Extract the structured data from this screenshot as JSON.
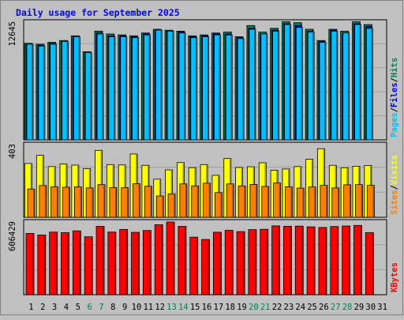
{
  "chart_data": {
    "type": "bar",
    "title": "Daily usage for September 2025",
    "categories": [
      "1",
      "2",
      "3",
      "4",
      "5",
      "6",
      "7",
      "8",
      "9",
      "10",
      "11",
      "12",
      "13",
      "14",
      "15",
      "16",
      "17",
      "18",
      "19",
      "20",
      "21",
      "22",
      "23",
      "24",
      "25",
      "26",
      "27",
      "28",
      "29",
      "30",
      "31"
    ],
    "weekend_days": [
      "6",
      "7",
      "13",
      "14",
      "20",
      "21",
      "27",
      "28"
    ],
    "panels": [
      {
        "id": "hits",
        "max_label": "12645",
        "ymax": 12645,
        "right_labels": [
          {
            "text": "Pages",
            "color": "#00C0FF"
          },
          {
            "text": "/",
            "color": "#000000"
          },
          {
            "text": "Files",
            "color": "#0000FF"
          },
          {
            "text": "/",
            "color": "#000000"
          },
          {
            "text": "Hits",
            "color": "#00805C"
          }
        ],
        "series": [
          {
            "name": "Hits",
            "color": "#00805C",
            "values": [
              10300,
              10200,
              10400,
              10600,
              11100,
              9400,
              11600,
              11300,
              11200,
              11100,
              11400,
              11800,
              11700,
              11600,
              11100,
              11200,
              11400,
              11500,
              11000,
              12200,
              11500,
              11900,
              12600,
              12500,
              11800,
              10600,
              11800,
              11600,
              12600,
              12300,
              null
            ]
          },
          {
            "name": "Files",
            "color": "#0000FF",
            "values": [
              10200,
              10100,
              10300,
              10500,
              11000,
              9300,
              11400,
              11100,
              11100,
              11000,
              11300,
              11700,
              11600,
              11500,
              11000,
              11100,
              11300,
              11300,
              10900,
              11900,
              11300,
              11700,
              12400,
              12200,
              11600,
              10500,
              11700,
              11400,
              12400,
              12100,
              null
            ]
          },
          {
            "name": "Pages",
            "color": "#00C0FF",
            "values": [
              10200,
              10000,
              10200,
              10500,
              11000,
              9300,
              11300,
              11000,
              11000,
              10900,
              11200,
              11700,
              11600,
              11400,
              10900,
              11000,
              11200,
              11200,
              10800,
              11800,
              11300,
              11600,
              12300,
              12000,
              11500,
              10400,
              11600,
              11400,
              12300,
              11900,
              null
            ]
          }
        ]
      },
      {
        "id": "visits",
        "max_label": "403",
        "ymax": 403,
        "right_labels": [
          {
            "text": "Sites",
            "color": "#FF8000"
          },
          {
            "text": "/",
            "color": "#000000"
          },
          {
            "text": "Visits",
            "color": "#FFFF00"
          }
        ],
        "series": [
          {
            "name": "Visits",
            "color": "#FFFF00",
            "values": [
              295,
              340,
              278,
              292,
              286,
              267,
              367,
              289,
              287,
              347,
              285,
              209,
              260,
              300,
              272,
              289,
              230,
              322,
              273,
              277,
              299,
              258,
              265,
              278,
              318,
              376,
              285,
              272,
              280,
              284,
              null
            ]
          },
          {
            "name": "Sites",
            "color": "#FF8000",
            "values": [
              155,
              174,
              167,
              165,
              167,
              161,
              179,
              163,
              162,
              184,
              170,
              117,
              128,
              183,
              172,
              187,
              135,
              183,
              172,
              180,
              169,
              188,
              167,
              160,
              166,
              175,
              161,
              178,
              179,
              175,
              null
            ]
          }
        ]
      },
      {
        "id": "kbytes",
        "max_label": "606429",
        "ymax": 606429,
        "right_labels": [
          {
            "text": "KBytes",
            "color": "#FF0000"
          }
        ],
        "series": [
          {
            "name": "KBytes",
            "color": "#FF0000",
            "values": [
              506000,
              493000,
              517000,
              512000,
              527000,
              478000,
              564000,
              517000,
              539000,
              515000,
              530000,
              578000,
              600000,
              564000,
              475000,
              456000,
              516000,
              531000,
              521000,
              537000,
              540000,
              568000,
              565000,
              566000,
              560000,
              555000,
              563000,
              567000,
              572000,
              512000,
              null
            ]
          }
        ]
      }
    ],
    "colors": {
      "background": "#C0C0C0",
      "title": "#0000FF",
      "weekday_label": "#000000",
      "weekend_label": "#00805C",
      "border": "#000000"
    }
  }
}
